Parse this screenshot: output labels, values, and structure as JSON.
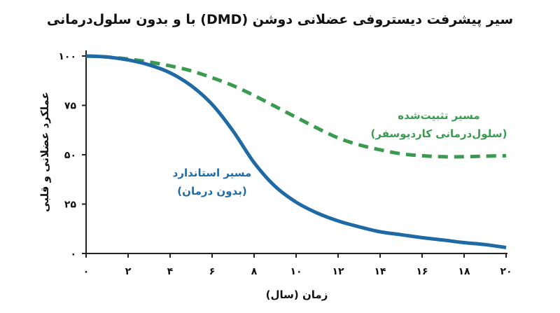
{
  "chart_data": {
    "type": "line",
    "title": "سیر پیشرفت دیستروفی عضلانی دوشن (DMD) با و بدون سلول‌درمانی",
    "xlabel": "زمان (سال)",
    "ylabel": "عملکرد عضلانی و قلبی",
    "xlim": [
      0,
      20
    ],
    "ylim": [
      0,
      100
    ],
    "x_ticks": [
      0,
      2,
      4,
      6,
      8,
      10,
      12,
      14,
      16,
      18,
      20
    ],
    "x_tick_labels": [
      "۰",
      "۲",
      "۴",
      "۶",
      "۸",
      "۱۰",
      "۱۲",
      "۱۴",
      "۱۶",
      "۱۸",
      "۲۰"
    ],
    "y_ticks": [
      0,
      25,
      50,
      75,
      100
    ],
    "y_tick_labels": [
      "۰",
      "۲۵",
      "۵۰",
      "۷۵",
      "۱۰۰"
    ],
    "grid": false,
    "series": [
      {
        "name": "مسیر استاندارد (بدون درمان)",
        "label_lines": [
          "مسیر استاندارد",
          "(بدون درمان)"
        ],
        "color": "#1f6aa5",
        "style": "solid",
        "x": [
          0,
          1,
          2,
          3,
          4,
          5,
          6,
          7,
          8,
          9,
          10,
          11,
          12,
          13,
          14,
          15,
          16,
          17,
          18,
          19,
          20
        ],
        "y": [
          100,
          99.5,
          98,
          95.5,
          91.5,
          85,
          75.5,
          62,
          46,
          34,
          26,
          20.5,
          16.5,
          13.5,
          11,
          9.5,
          8,
          6.8,
          5.5,
          4.5,
          3
        ]
      },
      {
        "name": "مسیر تثبیت‌شده (سلول‌درمانی کاردیوسفر)",
        "label_lines": [
          "مسیر تثبیت‌شده",
          "(سلول‌درمانی کاردیوسفر)"
        ],
        "color": "#3a9a4f",
        "style": "dashed",
        "x": [
          0,
          1,
          2,
          3,
          4,
          5,
          6,
          7,
          8,
          9,
          10,
          11,
          12,
          13,
          14,
          15,
          16,
          17,
          18,
          19,
          20
        ],
        "y": [
          100,
          99.5,
          98.5,
          97,
          95,
          92.5,
          89,
          85,
          80,
          74.5,
          69,
          63.5,
          58.5,
          55,
          52.5,
          50.5,
          49.5,
          49,
          49,
          49.3,
          49.5
        ]
      }
    ]
  }
}
